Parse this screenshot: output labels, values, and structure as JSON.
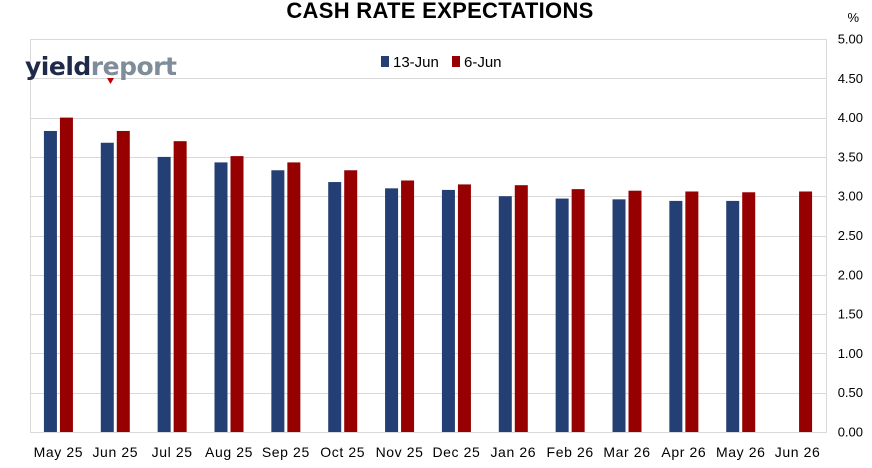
{
  "logo": {
    "brand": "yieldreport",
    "part1": "yield",
    "part2": "report",
    "colors": {
      "part1": "#1f2a4a",
      "part2": "#7f8c9a",
      "accent": "#c00000"
    }
  },
  "chart_data": {
    "type": "bar",
    "title": "CASH RATE EXPECTATIONS",
    "ylabel": "%",
    "xlabel": "",
    "ylim": [
      0,
      5
    ],
    "yticks": [
      "0.00",
      "0.50",
      "1.00",
      "1.50",
      "2.00",
      "2.50",
      "3.00",
      "3.50",
      "4.00",
      "4.50",
      "5.00"
    ],
    "y_axis_side": "right",
    "grid": true,
    "legend_position": "top-center",
    "categories": [
      "May 25",
      "Jun 25",
      "Jul 25",
      "Aug 25",
      "Sep 25",
      "Oct 25",
      "Nov 25",
      "Dec 25",
      "Jan 26",
      "Feb 26",
      "Mar 26",
      "Apr 26",
      "May 26",
      "Jun 26"
    ],
    "series": [
      {
        "name": "13-Jun",
        "color": "#243f73",
        "values": [
          3.83,
          3.68,
          3.5,
          3.43,
          3.33,
          3.18,
          3.1,
          3.08,
          3.0,
          2.97,
          2.96,
          2.94,
          2.94,
          null
        ]
      },
      {
        "name": "6-Jun",
        "color": "#960000",
        "values": [
          4.0,
          3.83,
          3.7,
          3.51,
          3.43,
          3.33,
          3.2,
          3.15,
          3.14,
          3.09,
          3.07,
          3.06,
          3.05,
          3.06
        ]
      }
    ]
  }
}
